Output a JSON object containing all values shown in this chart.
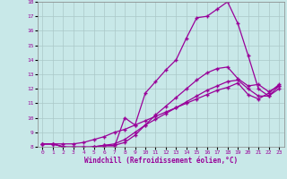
{
  "xlabel": "Windchill (Refroidissement éolien,°C)",
  "xlim": [
    -0.5,
    23.5
  ],
  "ylim": [
    8,
    18
  ],
  "xticks": [
    0,
    1,
    2,
    3,
    4,
    5,
    6,
    7,
    8,
    9,
    10,
    11,
    12,
    13,
    14,
    15,
    16,
    17,
    18,
    19,
    20,
    21,
    22,
    23
  ],
  "yticks": [
    8,
    9,
    10,
    11,
    12,
    13,
    14,
    15,
    16,
    17,
    18
  ],
  "bg_color": "#c8e8e8",
  "line_color": "#990099",
  "grid_color": "#aac8c8",
  "lines": [
    {
      "x": [
        0,
        1,
        2,
        3,
        4,
        5,
        6,
        7,
        8,
        9,
        10,
        11,
        12,
        13,
        14,
        15,
        16,
        17,
        18,
        19,
        20,
        21,
        22,
        23
      ],
      "y": [
        8.2,
        8.2,
        8.0,
        8.0,
        8.0,
        8.0,
        8.0,
        8.0,
        10.0,
        9.5,
        11.7,
        12.5,
        13.3,
        14.0,
        15.5,
        16.9,
        17.0,
        17.5,
        18.0,
        16.5,
        14.3,
        12.0,
        11.5,
        12.0
      ]
    },
    {
      "x": [
        0,
        1,
        2,
        3,
        4,
        5,
        6,
        7,
        8,
        9,
        10,
        11,
        12,
        13,
        14,
        15,
        16,
        17,
        18,
        19,
        20,
        21,
        22,
        23
      ],
      "y": [
        8.2,
        8.2,
        8.0,
        7.9,
        7.9,
        8.0,
        8.1,
        8.1,
        8.3,
        8.8,
        9.5,
        10.2,
        10.8,
        11.4,
        12.0,
        12.6,
        13.1,
        13.4,
        13.5,
        12.7,
        12.2,
        12.3,
        11.8,
        12.2
      ]
    },
    {
      "x": [
        0,
        1,
        2,
        3,
        4,
        5,
        6,
        7,
        8,
        9,
        10,
        11,
        12,
        13,
        14,
        15,
        16,
        17,
        18,
        19,
        20,
        21,
        22,
        23
      ],
      "y": [
        8.2,
        8.2,
        8.0,
        7.9,
        7.9,
        8.0,
        8.1,
        8.2,
        8.5,
        9.0,
        9.5,
        9.9,
        10.3,
        10.7,
        11.1,
        11.5,
        11.9,
        12.2,
        12.5,
        12.6,
        12.0,
        11.5,
        11.5,
        12.2
      ]
    },
    {
      "x": [
        0,
        1,
        2,
        3,
        4,
        5,
        6,
        7,
        8,
        9,
        10,
        11,
        12,
        13,
        14,
        15,
        16,
        17,
        18,
        19,
        20,
        21,
        22,
        23
      ],
      "y": [
        8.2,
        8.2,
        8.2,
        8.2,
        8.3,
        8.5,
        8.7,
        9.0,
        9.2,
        9.5,
        9.8,
        10.1,
        10.4,
        10.7,
        11.0,
        11.3,
        11.6,
        11.9,
        12.1,
        12.4,
        11.6,
        11.3,
        11.7,
        12.3
      ]
    }
  ]
}
